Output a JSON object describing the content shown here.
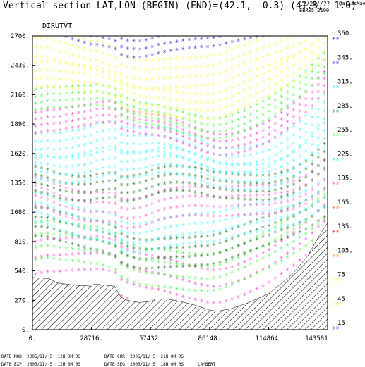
{
  "header": {
    "title": "Vertical section LAT,LON (BEGIN)-(END)=(42.1, -0.3)-(41.3,  1.0)",
    "date": "12/28//??",
    "user": "@aliasMae",
    "run": "EBR05 2100",
    "field": "DIRUTVT"
  },
  "footer": {
    "date_mod": "DATE MOD. 2005/11/ 5  12H 0M 0S",
    "date_cur": "DATE CUR. 2005/11/ 5  21H 0M 0S",
    "date_exp": "DATE EXP. 2005/11/ 5  12H 0M 0S",
    "date_seg": "DATE SEG. 2005/11/ 5  18H 0M 0S",
    "projection": "LAMBERT"
  },
  "chart_data": {
    "type": "heatmap",
    "x_ticks": [
      "0.",
      "28716.",
      "57432.",
      "86148.",
      "114864.",
      "143581."
    ],
    "y_ticks": [
      "0.",
      "270.",
      "540.",
      "810.",
      "1080.",
      "1350.",
      "1620.",
      "1890.",
      "2160.",
      "2430.",
      "2700."
    ],
    "xlim": [
      0,
      143581
    ],
    "ylim": [
      0,
      2700
    ],
    "grid": false,
    "legend_position": "right",
    "legend": [
      {
        "label": "15.",
        "color": "#3030e0"
      },
      {
        "label": "45.",
        "color": "#f0f060"
      },
      {
        "label": "75.",
        "color": "#ffff40"
      },
      {
        "label": "105.",
        "color": "#ff9040"
      },
      {
        "label": "135.",
        "color": "#e02020"
      },
      {
        "label": "165.",
        "color": "#ff6a40"
      },
      {
        "label": "195.",
        "color": "#ff50c0"
      },
      {
        "label": "225.",
        "color": "#40e0ff"
      },
      {
        "label": "255.",
        "color": "#40ff40"
      },
      {
        "label": "285.",
        "color": "#207020"
      },
      {
        "label": "315.",
        "color": "#40e0e0"
      },
      {
        "label": "345.",
        "color": "#2020ff"
      },
      {
        "label": "360.",
        "color": "#2020ff"
      }
    ],
    "terrain_fill": "hatched",
    "terrain_profile": [
      [
        0,
        480
      ],
      [
        8000,
        470
      ],
      [
        12000,
        430
      ],
      [
        20000,
        410
      ],
      [
        28716,
        400
      ],
      [
        30000,
        420
      ],
      [
        40000,
        400
      ],
      [
        43000,
        300
      ],
      [
        46000,
        270
      ],
      [
        52000,
        250
      ],
      [
        57432,
        260
      ],
      [
        60000,
        280
      ],
      [
        66000,
        280
      ],
      [
        72000,
        260
      ],
      [
        80000,
        220
      ],
      [
        86148,
        180
      ],
      [
        90000,
        170
      ],
      [
        96000,
        190
      ],
      [
        104000,
        240
      ],
      [
        114864,
        330
      ],
      [
        126000,
        500
      ],
      [
        134000,
        680
      ],
      [
        140000,
        880
      ],
      [
        143581,
        980
      ]
    ],
    "color_bands": [
      {
        "bottom": 0,
        "top": 600,
        "color": "#ff40d0"
      },
      {
        "bottom": 250,
        "top": 700,
        "color": "#40ff40"
      },
      {
        "bottom": 450,
        "top": 800,
        "color": "#207020"
      },
      {
        "bottom": 600,
        "top": 950,
        "color": "#40ffff"
      },
      {
        "bottom": 800,
        "top": 1150,
        "color": "#ff60d0"
      },
      {
        "bottom": 1000,
        "top": 1300,
        "color": "#207020"
      },
      {
        "bottom": 1150,
        "top": 1450,
        "color": "#40ffff"
      },
      {
        "bottom": 1350,
        "top": 1650,
        "color": "#40ffff"
      },
      {
        "bottom": 1550,
        "top": 1800,
        "color": "#ff40d0"
      },
      {
        "bottom": 1700,
        "top": 1950,
        "color": "#40ff40"
      },
      {
        "bottom": 1850,
        "top": 2150,
        "color": "#ffff40"
      },
      {
        "bottom": 2100,
        "top": 2450,
        "color": "#ffff40"
      },
      {
        "bottom": 2400,
        "top": 2700,
        "color": "#3030e0"
      }
    ]
  }
}
